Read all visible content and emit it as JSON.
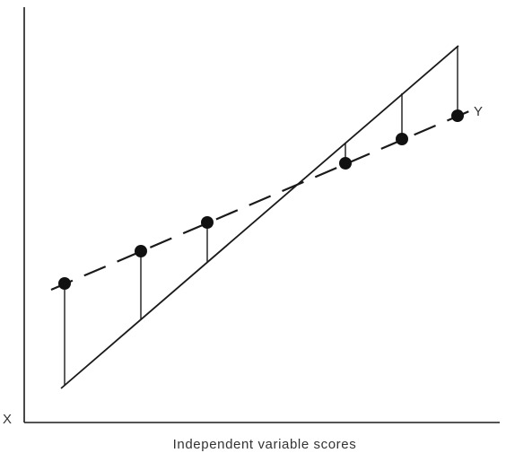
{
  "labels": {
    "x_axis": "Independent variable scores",
    "x_symbol": "X",
    "y_symbol": "Y"
  },
  "diagram": {
    "description_type": "regression-residuals",
    "point_count": 6
  }
}
